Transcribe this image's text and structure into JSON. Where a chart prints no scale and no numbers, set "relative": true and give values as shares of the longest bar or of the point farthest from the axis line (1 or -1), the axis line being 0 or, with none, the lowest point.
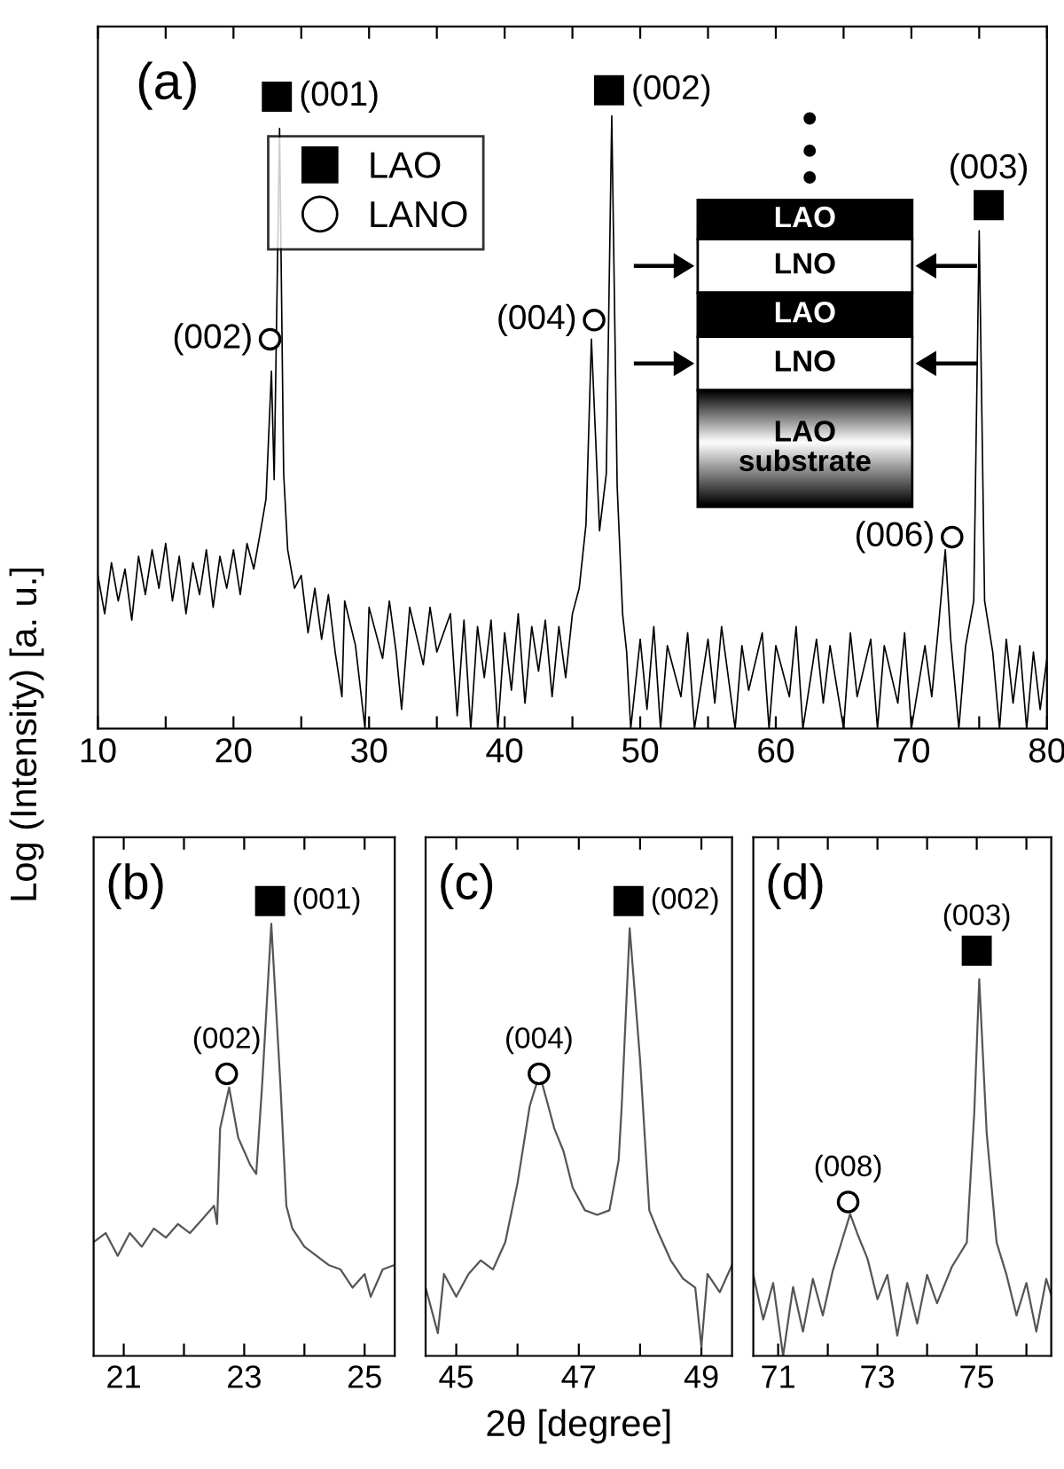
{
  "chart_data": [
    {
      "type": "line",
      "title": "(a)",
      "ylabel": "Log (Intensity) [a. u.]",
      "relative": true,
      "xlim": [
        10,
        80
      ],
      "xticks": [
        10,
        {
          "value": 15,
          "label": null
        },
        20,
        {
          "value": 25,
          "label": null
        },
        30,
        {
          "value": 35,
          "label": null
        },
        40,
        {
          "value": 45,
          "label": null
        },
        50,
        {
          "value": 55,
          "label": null
        },
        60,
        {
          "value": 65,
          "label": null
        },
        70,
        {
          "value": 75,
          "label": null
        },
        80
      ],
      "legend": "top left",
      "series": [
        {
          "color": "#000000",
          "x": [
            10,
            10.5,
            11,
            11.5,
            12,
            12.5,
            13,
            13.5,
            14,
            14.5,
            15,
            15.5,
            16,
            16.5,
            17,
            17.5,
            18,
            18.5,
            19,
            19.5,
            20,
            20.5,
            21,
            21.5,
            22,
            22.4,
            22.8,
            23.0,
            23.4,
            23.7,
            24.0,
            24.5,
            25,
            25.5,
            26,
            26.5,
            27,
            27.5,
            28,
            28.2,
            29,
            29.7,
            30,
            31,
            31.5,
            32,
            32.4,
            33,
            34,
            34.5,
            35,
            36,
            36.5,
            37,
            37.5,
            38,
            38.5,
            39,
            39.5,
            40,
            40.5,
            41,
            41.5,
            42,
            42.5,
            43,
            43.5,
            44,
            44.5,
            45,
            45.5,
            46.0,
            46.4,
            47.0,
            47.5,
            47.9,
            48.3,
            48.7,
            49,
            49.3,
            50,
            50.5,
            51,
            51.5,
            52,
            53,
            53.5,
            54,
            55,
            55.5,
            56,
            57,
            57.5,
            58,
            59,
            59.5,
            60,
            61,
            61.5,
            62,
            63,
            63.5,
            64,
            65,
            65.5,
            66,
            67,
            67.5,
            68,
            69,
            69.5,
            70,
            71,
            71.5,
            72,
            72.5,
            72.9,
            73.5,
            74,
            74.6,
            75.0,
            75.4,
            76,
            76.5,
            77,
            77.5,
            78,
            78.5,
            79,
            79.5,
            80
          ],
          "values": [
            0.24,
            0.18,
            0.26,
            0.2,
            0.25,
            0.17,
            0.27,
            0.21,
            0.28,
            0.22,
            0.29,
            0.2,
            0.27,
            0.18,
            0.26,
            0.21,
            0.28,
            0.19,
            0.27,
            0.22,
            0.28,
            0.21,
            0.29,
            0.25,
            0.31,
            0.36,
            0.56,
            0.39,
            0.94,
            0.4,
            0.28,
            0.22,
            0.24,
            0.15,
            0.22,
            0.14,
            0.21,
            0.12,
            0.05,
            0.2,
            0.13,
            0.0,
            0.19,
            0.11,
            0.2,
            0.12,
            0.03,
            0.19,
            0.1,
            0.19,
            0.12,
            0.18,
            0.02,
            0.17,
            0.0,
            0.16,
            0.08,
            0.17,
            0.0,
            0.15,
            0.06,
            0.18,
            0.04,
            0.16,
            0.09,
            0.17,
            0.05,
            0.16,
            0.08,
            0.18,
            0.22,
            0.32,
            0.61,
            0.31,
            0.4,
            0.96,
            0.38,
            0.18,
            0.12,
            0.0,
            0.14,
            0.03,
            0.16,
            0.0,
            0.13,
            0.05,
            0.15,
            0.0,
            0.14,
            0.04,
            0.16,
            0.0,
            0.13,
            0.06,
            0.15,
            0.0,
            0.13,
            0.05,
            0.16,
            0.0,
            0.14,
            0.04,
            0.13,
            0.0,
            0.15,
            0.05,
            0.14,
            0.0,
            0.13,
            0.04,
            0.15,
            0.0,
            0.13,
            0.05,
            0.16,
            0.28,
            0.14,
            0.0,
            0.13,
            0.2,
            0.78,
            0.2,
            0.12,
            0.0,
            0.14,
            0.04,
            0.13,
            0.0,
            0.12,
            0.03,
            0.11
          ]
        },
        {
          "type": "scatter",
          "name": "LAO",
          "marker": "square",
          "color": "#000000",
          "x": [
            23.2,
            47.7,
            75.7
          ],
          "values": [
            0.99,
            1.0,
            0.82
          ]
        },
        {
          "type": "scatter",
          "name": "LANO",
          "marker": "circle",
          "color": "#000000",
          "x": [
            22.7,
            46.6,
            73.0
          ],
          "values": [
            0.61,
            0.64,
            0.3
          ]
        }
      ],
      "annotations": [
        "(001)",
        "(002)",
        "(003)",
        "(002)",
        "(004)",
        "(006)",
        "LAO",
        "LNO",
        "LAO",
        "LNO",
        "LAO\nsubstrate"
      ]
    },
    {
      "type": "line",
      "title": "(b)",
      "relative": true,
      "xlim": [
        20.5,
        25.5
      ],
      "xticks": [
        21,
        {
          "value": 22,
          "label": null
        },
        23,
        {
          "value": 24,
          "label": null
        },
        25
      ],
      "series": [
        {
          "color": "#555555",
          "x": [
            20.5,
            20.7,
            20.9,
            21.1,
            21.3,
            21.5,
            21.7,
            21.9,
            22.1,
            22.3,
            22.5,
            22.55,
            22.6,
            22.75,
            22.9,
            23.0,
            23.1,
            23.2,
            23.3,
            23.45,
            23.6,
            23.7,
            23.8,
            24.0,
            24.2,
            24.4,
            24.6,
            24.8,
            25.0,
            25.1,
            25.3,
            25.5
          ],
          "values": [
            0.25,
            0.27,
            0.22,
            0.27,
            0.24,
            0.28,
            0.26,
            0.29,
            0.27,
            0.3,
            0.33,
            0.29,
            0.5,
            0.59,
            0.48,
            0.45,
            0.42,
            0.4,
            0.6,
            0.95,
            0.6,
            0.33,
            0.28,
            0.24,
            0.22,
            0.2,
            0.19,
            0.15,
            0.18,
            0.13,
            0.19,
            0.2
          ]
        },
        {
          "type": "scatter",
          "marker": "square",
          "color": "#000000",
          "x": [
            23.43
          ],
          "values": [
            1.0
          ]
        },
        {
          "type": "scatter",
          "marker": "circle",
          "color": "#000000",
          "x": [
            22.71
          ],
          "values": [
            0.62
          ]
        }
      ],
      "annotations": [
        "(001)",
        "(002)"
      ]
    },
    {
      "type": "line",
      "title": "(c)",
      "xlabel": "2θ [degree]",
      "relative": true,
      "xlim": [
        44.5,
        49.5
      ],
      "xticks": [
        45,
        {
          "value": 46,
          "label": null
        },
        47,
        {
          "value": 48,
          "label": null
        },
        49
      ],
      "series": [
        {
          "color": "#555555",
          "x": [
            44.5,
            44.7,
            44.8,
            45.0,
            45.2,
            45.4,
            45.6,
            45.8,
            46.0,
            46.2,
            46.36,
            46.6,
            46.75,
            46.9,
            47.1,
            47.3,
            47.5,
            47.65,
            47.7,
            47.83,
            48.0,
            48.15,
            48.3,
            48.5,
            48.7,
            48.9,
            49.0,
            49.1,
            49.3,
            49.5
          ],
          "values": [
            0.15,
            0.05,
            0.18,
            0.13,
            0.18,
            0.21,
            0.19,
            0.25,
            0.38,
            0.55,
            0.62,
            0.5,
            0.45,
            0.37,
            0.32,
            0.31,
            0.32,
            0.43,
            0.55,
            0.94,
            0.65,
            0.32,
            0.27,
            0.21,
            0.17,
            0.15,
            0.02,
            0.18,
            0.14,
            0.2
          ]
        },
        {
          "type": "scatter",
          "marker": "square",
          "color": "#000000",
          "x": [
            47.81
          ],
          "values": [
            1.0
          ]
        },
        {
          "type": "scatter",
          "marker": "circle",
          "color": "#000000",
          "x": [
            46.35
          ],
          "values": [
            0.62
          ]
        }
      ],
      "annotations": [
        "(002)",
        "(004)"
      ]
    },
    {
      "type": "line",
      "title": "(d)",
      "relative": true,
      "xlim": [
        70.5,
        76.5
      ],
      "xticks": [
        71,
        {
          "value": 72,
          "label": null
        },
        73,
        {
          "value": 74,
          "label": null
        },
        75,
        {
          "value": 76,
          "label": null
        }
      ],
      "series": [
        {
          "color": "#555555",
          "x": [
            70.5,
            70.7,
            70.9,
            71.1,
            71.3,
            71.5,
            71.7,
            71.9,
            72.1,
            72.3,
            72.45,
            72.6,
            72.8,
            73.0,
            73.2,
            73.4,
            73.6,
            73.8,
            74.0,
            74.2,
            74.5,
            74.8,
            74.95,
            75.05,
            75.2,
            75.4,
            75.6,
            75.8,
            76.0,
            76.2,
            76.4,
            76.5
          ],
          "values": [
            0.2,
            0.09,
            0.18,
            0.0,
            0.17,
            0.06,
            0.19,
            0.1,
            0.21,
            0.29,
            0.35,
            0.3,
            0.24,
            0.14,
            0.2,
            0.05,
            0.18,
            0.08,
            0.2,
            0.13,
            0.22,
            0.28,
            0.6,
            0.93,
            0.55,
            0.28,
            0.2,
            0.1,
            0.18,
            0.06,
            0.19,
            0.15
          ]
        },
        {
          "type": "scatter",
          "marker": "square",
          "color": "#000000",
          "x": [
            75.0
          ],
          "values": [
            1.0
          ]
        },
        {
          "type": "scatter",
          "marker": "circle",
          "color": "#000000",
          "x": [
            72.41
          ],
          "values": [
            0.38
          ]
        }
      ],
      "annotations": [
        "(003)",
        "(008)"
      ]
    }
  ]
}
